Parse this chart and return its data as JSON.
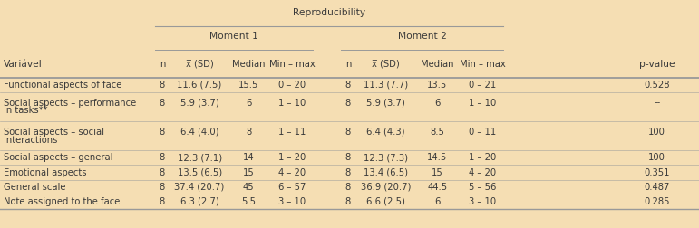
{
  "title": "Reproducibility",
  "background_color": "#f5deb3",
  "col_header1": "Moment 1",
  "col_header2": "Moment 2",
  "sub_headers": [
    "n",
    "x̅ (SD)",
    "Median",
    "Min – max",
    "n",
    "x̅ (SD)",
    "Median",
    "Min – max"
  ],
  "left_col_header": "Variável",
  "right_col_header": "p-value",
  "rows": [
    {
      "m1_n": "8",
      "m1_sd": "11.6 (7.5)",
      "m1_med": "15.5",
      "m1_minmax": "0 – 20",
      "m2_n": "8",
      "m2_sd": "11.3 (7.7)",
      "m2_med": "13.5",
      "m2_minmax": "0 – 21",
      "pvalue": "0.528",
      "label_lines": [
        "Functional aspects of face"
      ]
    },
    {
      "m1_n": "8",
      "m1_sd": "5.9 (3.7)",
      "m1_med": "6",
      "m1_minmax": "1 – 10",
      "m2_n": "8",
      "m2_sd": "5.9 (3.7)",
      "m2_med": "6",
      "m2_minmax": "1 – 10",
      "pvalue": "--",
      "label_lines": [
        "Social aspects – performance",
        "in tasks**"
      ]
    },
    {
      "m1_n": "8",
      "m1_sd": "6.4 (4.0)",
      "m1_med": "8",
      "m1_minmax": "1 – 11",
      "m2_n": "8",
      "m2_sd": "6.4 (4.3)",
      "m2_med": "8.5",
      "m2_minmax": "0 – 11",
      "pvalue": "100",
      "label_lines": [
        "Social aspects – social",
        "interactions"
      ]
    },
    {
      "m1_n": "8",
      "m1_sd": "12.3 (7.1)",
      "m1_med": "14",
      "m1_minmax": "1 – 20",
      "m2_n": "8",
      "m2_sd": "12.3 (7.3)",
      "m2_med": "14.5",
      "m2_minmax": "1 – 20",
      "pvalue": "100",
      "label_lines": [
        "Social aspects – general"
      ]
    },
    {
      "m1_n": "8",
      "m1_sd": "13.5 (6.5)",
      "m1_med": "15",
      "m1_minmax": "4 – 20",
      "m2_n": "8",
      "m2_sd": "13.4 (6.5)",
      "m2_med": "15",
      "m2_minmax": "4 – 20",
      "pvalue": "0.351",
      "label_lines": [
        "Emotional aspects"
      ]
    },
    {
      "m1_n": "8",
      "m1_sd": "37.4 (20.7)",
      "m1_med": "45",
      "m1_minmax": "6 – 57",
      "m2_n": "8",
      "m2_sd": "36.9 (20.7)",
      "m2_med": "44.5",
      "m2_minmax": "5 – 56",
      "pvalue": "0.487",
      "label_lines": [
        "General scale"
      ]
    },
    {
      "m1_n": "8",
      "m1_sd": "6.3 (2.7)",
      "m1_med": "5.5",
      "m1_minmax": "3 – 10",
      "m2_n": "8",
      "m2_sd": "6.6 (2.5)",
      "m2_med": "6",
      "m2_minmax": "3 – 10",
      "pvalue": "0.285",
      "label_lines": [
        "Note assigned to the face"
      ]
    }
  ],
  "text_color": "#3a3a3a",
  "line_color": "#999999",
  "font_size": 7.2,
  "col_positions": {
    "label": 0.005,
    "m1_n": 0.222,
    "m1_sd": 0.258,
    "m1_med": 0.338,
    "m1_mm": 0.388,
    "m2_n": 0.488,
    "m2_sd": 0.524,
    "m2_med": 0.608,
    "m2_mm": 0.66,
    "pvalue": 0.94
  },
  "col_widths": {
    "m1_n": 0.02,
    "m1_sd": 0.055,
    "m1_med": 0.035,
    "m1_mm": 0.06,
    "m2_n": 0.02,
    "m2_sd": 0.055,
    "m2_med": 0.035,
    "m2_mm": 0.06
  }
}
